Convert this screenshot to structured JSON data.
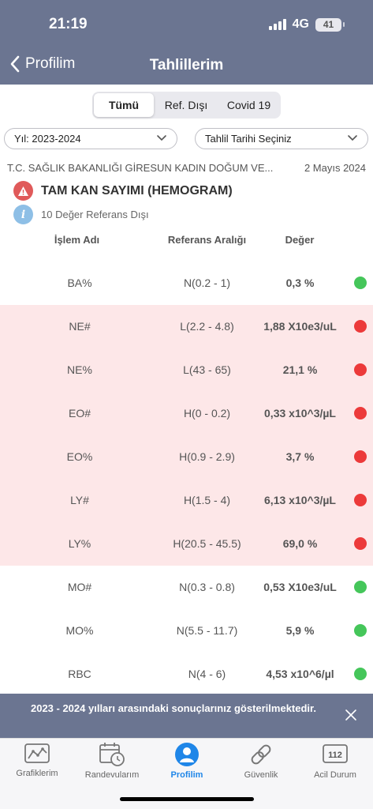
{
  "status": {
    "time": "21:19",
    "network": "4G",
    "battery": "41"
  },
  "nav": {
    "back_label": "Profilim",
    "title": "Tahlillerim"
  },
  "segments": [
    {
      "label": "Tümü",
      "active": true
    },
    {
      "label": "Ref. Dışı",
      "active": false
    },
    {
      "label": "Covid 19",
      "active": false
    }
  ],
  "filters": {
    "year": "Yıl: 2023-2024",
    "date_placeholder": "Tahlil Tarihi Seçiniz"
  },
  "report": {
    "hospital": "T.C. SAĞLIK BAKANLIĞI GİRESUN KADIN DOĞUM VE...",
    "date": "2 Mayıs 2024",
    "test_name": "TAM KAN SAYIMI (HEMOGRAM)",
    "out_of_range_text": "10 Değer Referans Dışı"
  },
  "table": {
    "headers": {
      "name": "İşlem Adı",
      "range": "Referans Aralığı",
      "value": "Değer"
    },
    "rows": [
      {
        "name": "BA%",
        "range": "N(0.2 - 1)",
        "value": "0,3 %",
        "status": "normal"
      },
      {
        "name": "NE#",
        "range": "L(2.2 - 4.8)",
        "value": "1,88 X10e3/uL",
        "status": "abnormal"
      },
      {
        "name": "NE%",
        "range": "L(43 - 65)",
        "value": "21,1 %",
        "status": "abnormal"
      },
      {
        "name": "EO#",
        "range": "H(0 - 0.2)",
        "value": "0,33 x10^3/µL",
        "status": "abnormal"
      },
      {
        "name": "EO%",
        "range": "H(0.9 - 2.9)",
        "value": "3,7 %",
        "status": "abnormal"
      },
      {
        "name": "LY#",
        "range": "H(1.5 - 4)",
        "value": "6,13 x10^3/µL",
        "status": "abnormal"
      },
      {
        "name": "LY%",
        "range": "H(20.5 - 45.5)",
        "value": "69,0 %",
        "status": "abnormal"
      },
      {
        "name": "MO#",
        "range": "N(0.3 - 0.8)",
        "value": "0,53 X10e3/uL",
        "status": "normal"
      },
      {
        "name": "MO%",
        "range": "N(5.5 - 11.7)",
        "value": "5,9 %",
        "status": "normal"
      },
      {
        "name": "RBC",
        "range": "N(4 - 6)",
        "value": "4,53 x10^6/µl",
        "status": "normal"
      }
    ]
  },
  "banner": {
    "text": "2023 - 2024 yılları arasındaki sonuçlarınız gösterilmektedir."
  },
  "tabs": [
    {
      "label": "Grafiklerim",
      "icon": "chart-icon"
    },
    {
      "label": "Randevularım",
      "icon": "calendar-clock-icon"
    },
    {
      "label": "Profilim",
      "icon": "profile-icon",
      "active": true
    },
    {
      "label": "Güvenlik",
      "icon": "link-icon"
    },
    {
      "label": "Acil Durum",
      "icon": "emergency-112-icon",
      "badge": "112"
    }
  ],
  "colors": {
    "header": "#6b7591",
    "abnormal_bg": "#fde7e8",
    "red": "#ec3a3a",
    "green": "#45c65a",
    "active_tab": "#1f86e8"
  }
}
